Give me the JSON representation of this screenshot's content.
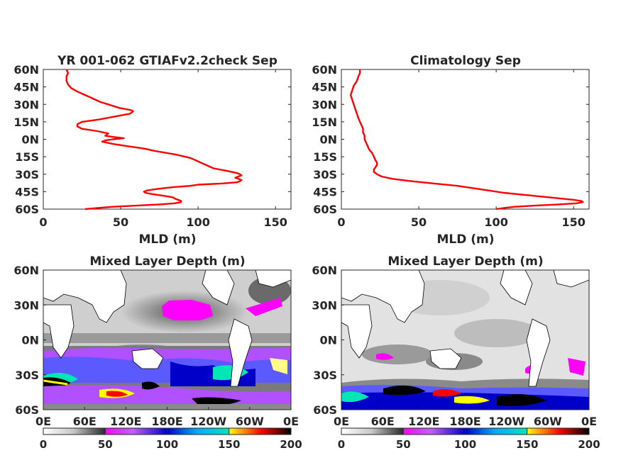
{
  "chart_data": [
    {
      "id": "profile_model",
      "type": "line",
      "title": "YR 001-062 GTIAFv2.2check Sep",
      "xlabel": "MLD (m)",
      "ylabel": "",
      "xlim": [
        0,
        160
      ],
      "ylim": [
        -60,
        60
      ],
      "x_ticks": [
        "0",
        "50",
        "100",
        "150"
      ],
      "x_tick_values": [
        0,
        50,
        100,
        150
      ],
      "y_ticks": [
        "60N",
        "45N",
        "30N",
        "15N",
        "0N",
        "15S",
        "30S",
        "45S",
        "60S"
      ],
      "y_tick_values": [
        60,
        45,
        30,
        15,
        0,
        -15,
        -30,
        -45,
        -60
      ],
      "series_color": "#ff0000",
      "series": [
        {
          "lat": [
            60,
            57,
            54,
            50,
            47,
            44,
            41,
            38,
            35,
            32,
            30,
            27,
            25,
            24,
            22,
            20,
            17,
            15,
            13,
            11,
            9,
            7,
            5,
            3,
            2,
            1,
            0,
            -1,
            -2,
            -4,
            -6,
            -8,
            -10,
            -13,
            -16,
            -19,
            -22,
            -25,
            -27,
            -29,
            -30,
            -31,
            -32,
            -33,
            -34,
            -35,
            -36,
            -37,
            -38,
            -39,
            -40,
            -41,
            -42,
            -43,
            -44,
            -45,
            -46,
            -47,
            -48,
            -49,
            -50,
            -51,
            -52,
            -53,
            -54,
            -55,
            -56,
            -57,
            -58,
            -59,
            -60
          ],
          "mld": [
            15,
            16,
            15,
            15,
            16,
            18,
            22,
            27,
            32,
            37,
            42,
            49,
            57,
            58,
            56,
            48,
            36,
            25,
            22,
            22,
            25,
            35,
            42,
            40,
            45,
            52,
            45,
            40,
            38,
            45,
            55,
            65,
            72,
            85,
            95,
            100,
            105,
            110,
            118,
            125,
            127,
            128,
            126,
            124,
            126,
            128,
            127,
            125,
            115,
            100,
            95,
            85,
            78,
            72,
            67,
            65,
            66,
            70,
            75,
            80,
            84,
            85,
            87,
            89,
            89,
            85,
            75,
            60,
            45,
            35,
            27
          ]
        }
      ]
    },
    {
      "id": "profile_clim",
      "type": "line",
      "title": "Climatology Sep",
      "xlabel": "MLD (m)",
      "ylabel": "",
      "xlim": [
        0,
        160
      ],
      "ylim": [
        -60,
        60
      ],
      "x_ticks": [
        "0",
        "50",
        "100",
        "150"
      ],
      "x_tick_values": [
        0,
        50,
        100,
        150
      ],
      "y_ticks": [
        "60N",
        "45N",
        "30N",
        "15N",
        "0N",
        "15S",
        "30S",
        "45S",
        "60S"
      ],
      "y_tick_values": [
        60,
        45,
        30,
        15,
        0,
        -15,
        -30,
        -45,
        -60
      ],
      "series_color": "#ff0000",
      "series": [
        {
          "lat": [
            60,
            57,
            54,
            50,
            46,
            42,
            38,
            34,
            30,
            26,
            22,
            18,
            15,
            12,
            9,
            6,
            3,
            0,
            -3,
            -6,
            -9,
            -12,
            -15,
            -18,
            -20,
            -22,
            -24,
            -26,
            -28,
            -30,
            -32,
            -34,
            -36,
            -38,
            -40,
            -42,
            -44,
            -46,
            -48,
            -50,
            -52,
            -53,
            -54,
            -55,
            -56,
            -57,
            -58,
            -59,
            -60
          ],
          "mld": [
            12,
            12,
            11,
            10,
            8,
            7,
            6,
            7,
            8,
            9,
            10,
            11,
            12,
            13,
            14,
            14,
            15,
            15,
            16,
            17,
            18,
            20,
            21,
            22,
            23,
            23,
            22,
            21,
            21,
            23,
            26,
            33,
            45,
            60,
            75,
            85,
            95,
            105,
            120,
            135,
            150,
            155,
            156,
            152,
            140,
            125,
            112,
            105,
            100
          ]
        }
      ]
    },
    {
      "id": "map_model",
      "type": "heatmap",
      "title": "Mixed Layer Depth (m)",
      "x_ticks": [
        "0E",
        "60E",
        "120E",
        "180E",
        "120W",
        "60W",
        "0E"
      ],
      "y_ticks": [
        "60N",
        "30N",
        "0N",
        "30S",
        "60S"
      ],
      "colorbar_ticks": [
        "0",
        "50",
        "100",
        "150",
        "200"
      ],
      "colorbar_range": [
        0,
        200
      ],
      "colormap": [
        "#ffffff",
        "#c8c8c8",
        "#2c2c2c",
        "#ff00ff",
        "#5a5aff",
        "#0000c8",
        "#00e6b4",
        "#ffff00",
        "#ff0000",
        "#000000"
      ]
    },
    {
      "id": "map_clim",
      "type": "heatmap",
      "title": "Mixed Layer Depth (m)",
      "x_ticks": [
        "0E",
        "60E",
        "120E",
        "180E",
        "120W",
        "60W",
        "0E"
      ],
      "y_ticks": [
        "60N",
        "30N",
        "0N",
        "30S",
        "60S"
      ],
      "colorbar_ticks": [
        "0",
        "50",
        "100",
        "150",
        "200"
      ],
      "colorbar_range": [
        0,
        200
      ],
      "colormap": [
        "#ffffff",
        "#c8c8c8",
        "#2c2c2c",
        "#ff00ff",
        "#5a5aff",
        "#0000c8",
        "#00e6b4",
        "#ffff00",
        "#ff0000",
        "#000000"
      ]
    }
  ]
}
